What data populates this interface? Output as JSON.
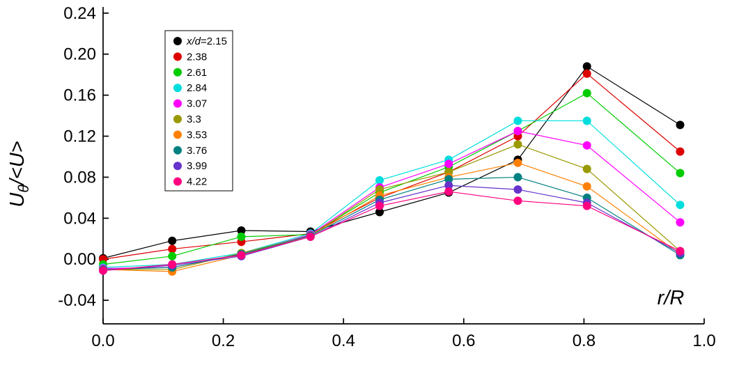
{
  "chart_data": {
    "type": "line",
    "title": "",
    "xlabel": "r/R",
    "ylabel": "U_θ/<U>",
    "xlim": [
      0.0,
      1.0
    ],
    "ylim": [
      -0.063,
      0.246
    ],
    "x_ticks": [
      0.0,
      0.2,
      0.4,
      0.6,
      0.8,
      1.0
    ],
    "x_tick_labels": [
      "0.0",
      "0.2",
      "0.4",
      "0.6",
      "0.8",
      "1.0"
    ],
    "y_ticks": [
      -0.04,
      0.0,
      0.04,
      0.08,
      0.12,
      0.16,
      0.2,
      0.24
    ],
    "y_tick_labels": [
      "-0.04",
      "0.00",
      "0.04",
      "0.08",
      "0.12",
      "0.16",
      "0.20",
      "0.24"
    ],
    "grid": false,
    "legend_position": "upper-left-inside",
    "x": [
      0.0,
      0.115,
      0.23,
      0.345,
      0.46,
      0.575,
      0.69,
      0.805,
      0.96
    ],
    "series": [
      {
        "name": "x/d=2.15",
        "color": "#000000",
        "values": [
          0.001,
          0.018,
          0.028,
          0.027,
          0.046,
          0.065,
          0.097,
          0.188,
          0.131
        ]
      },
      {
        "name": "2.38",
        "color": "#dd0000",
        "values": [
          0.0,
          0.01,
          0.017,
          0.025,
          0.06,
          0.085,
          0.12,
          0.181,
          0.105
        ]
      },
      {
        "name": "2.61",
        "color": "#00cc00",
        "values": [
          -0.005,
          0.003,
          0.022,
          0.024,
          0.065,
          0.09,
          0.125,
          0.162,
          0.084
        ]
      },
      {
        "name": "2.84",
        "color": "#00dddd",
        "values": [
          -0.008,
          -0.005,
          0.006,
          0.025,
          0.077,
          0.097,
          0.135,
          0.135,
          0.053
        ]
      },
      {
        "name": "3.07",
        "color": "#ff00ff",
        "values": [
          -0.009,
          -0.008,
          0.005,
          0.024,
          0.07,
          0.093,
          0.125,
          0.111,
          0.036
        ]
      },
      {
        "name": "3.3",
        "color": "#999900",
        "values": [
          -0.01,
          -0.01,
          0.006,
          0.023,
          0.068,
          0.085,
          0.112,
          0.088,
          0.008
        ]
      },
      {
        "name": "3.53",
        "color": "#ff8000",
        "values": [
          -0.01,
          -0.012,
          0.004,
          0.023,
          0.062,
          0.08,
          0.094,
          0.071,
          0.005
        ]
      },
      {
        "name": "3.76",
        "color": "#008080",
        "values": [
          -0.01,
          -0.008,
          0.005,
          0.023,
          0.058,
          0.078,
          0.08,
          0.06,
          0.004
        ]
      },
      {
        "name": "3.99",
        "color": "#6633cc",
        "values": [
          -0.011,
          -0.006,
          0.003,
          0.022,
          0.055,
          0.072,
          0.068,
          0.055,
          0.006
        ]
      },
      {
        "name": "4.22",
        "color": "#ff0080",
        "values": [
          -0.011,
          -0.005,
          0.004,
          0.022,
          0.052,
          0.066,
          0.057,
          0.052,
          0.008
        ]
      }
    ]
  }
}
